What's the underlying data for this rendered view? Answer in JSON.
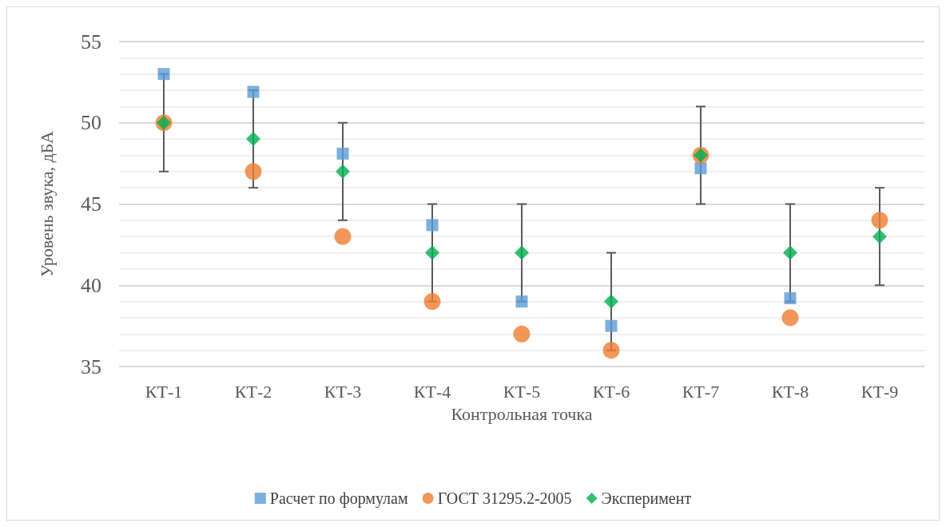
{
  "chart_data": {
    "type": "scatter",
    "xlabel": "Контрольная точка",
    "ylabel": "Уровень звука, дБА",
    "categories": [
      "КТ-1",
      "КТ-2",
      "КТ-3",
      "КТ-4",
      "КТ-5",
      "КТ-6",
      "КТ-7",
      "КТ-8",
      "КТ-9"
    ],
    "ylim": [
      35,
      55
    ],
    "yticks": [
      35,
      40,
      45,
      50,
      55
    ],
    "grid": "y",
    "legend": "bottom",
    "series": [
      {
        "name": "Расчет по формулам",
        "color": "#5b9bd5",
        "marker": "square",
        "values": [
          53,
          51.9,
          48.1,
          43.7,
          39,
          37.5,
          47.2,
          39.2,
          null
        ]
      },
      {
        "name": "ГОСТ 31295.2-2005",
        "color": "#ed7d31",
        "marker": "circle",
        "values": [
          50,
          47,
          43,
          39,
          37,
          36,
          48,
          38,
          44
        ]
      },
      {
        "name": "Эксперимент",
        "color": "#00b050",
        "marker": "diamond",
        "values": [
          50,
          49,
          47,
          42,
          42,
          39,
          48,
          42,
          43
        ],
        "errors": [
          3,
          3,
          3,
          3,
          3,
          3,
          3,
          3,
          3
        ]
      }
    ]
  }
}
